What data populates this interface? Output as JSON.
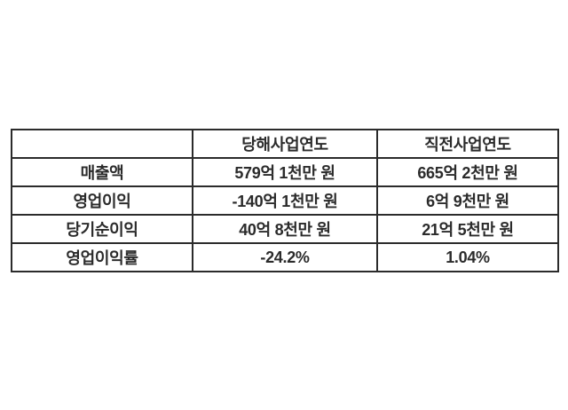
{
  "colors": {
    "background": "#ffffff",
    "border": "#2b2b2b",
    "text": "#2b2b2b"
  },
  "chart_data": {
    "type": "table",
    "columns": [
      "",
      "당해사업연도",
      "직전사업연도"
    ],
    "rows": [
      [
        "매출액",
        "579억 1천만 원",
        "665억 2천만 원"
      ],
      [
        "영업이익",
        "-140억 1천만 원",
        "6억 9천만 원"
      ],
      [
        "당기순이익",
        "40억 8천만 원",
        "21억 5천만 원"
      ],
      [
        "영업이익률",
        "-24.2%",
        "1.04%"
      ]
    ]
  }
}
